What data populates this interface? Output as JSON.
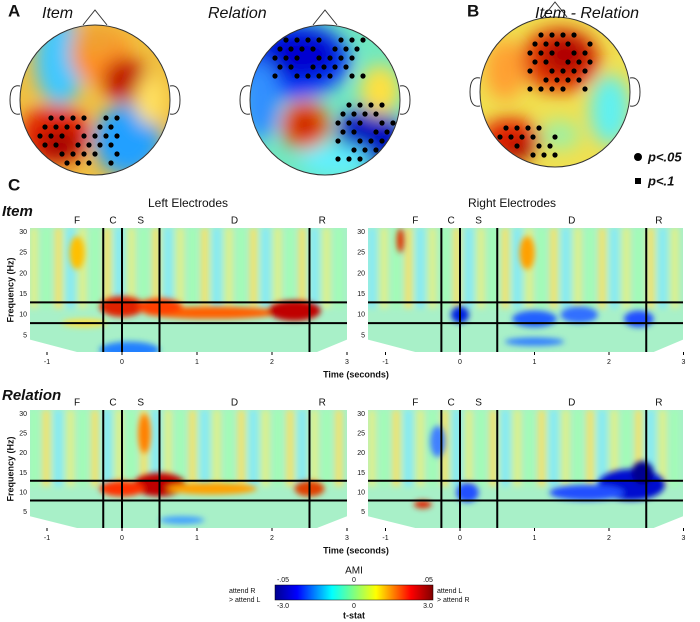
{
  "panel_labels": [
    "A",
    "B",
    "C"
  ],
  "topomaps": [
    {
      "title": "Item"
    },
    {
      "title": "Relation"
    },
    {
      "title": "Item - Relation"
    }
  ],
  "significance_legend": [
    {
      "label": "p<.05"
    },
    {
      "label": "p<.1"
    }
  ],
  "spectrograms": {
    "column_titles": [
      "Left Electrodes",
      "Right Electrodes"
    ],
    "rows": [
      {
        "title": "Item"
      },
      {
        "title": "Relation"
      }
    ],
    "phase_labels": [
      "F",
      "C",
      "S",
      "D",
      "R"
    ],
    "y_axis_label": "Frequency (Hz)",
    "y_ticks": [
      "5",
      "10",
      "15",
      "20",
      "25",
      "30"
    ],
    "x_ticks": [
      "-1",
      "0",
      "1",
      "2",
      "3"
    ],
    "x_axis_label": "Time (seconds)"
  },
  "colorbar": {
    "title": "AMI",
    "top_ticks": [
      "-.05",
      "0",
      ".05"
    ],
    "bottom_ticks": [
      "-3.0",
      "0",
      "3.0"
    ],
    "label": "t-stat",
    "left_note": [
      "attend R",
      "> attend L"
    ],
    "right_note": [
      "attend L",
      "> attend R"
    ]
  }
}
